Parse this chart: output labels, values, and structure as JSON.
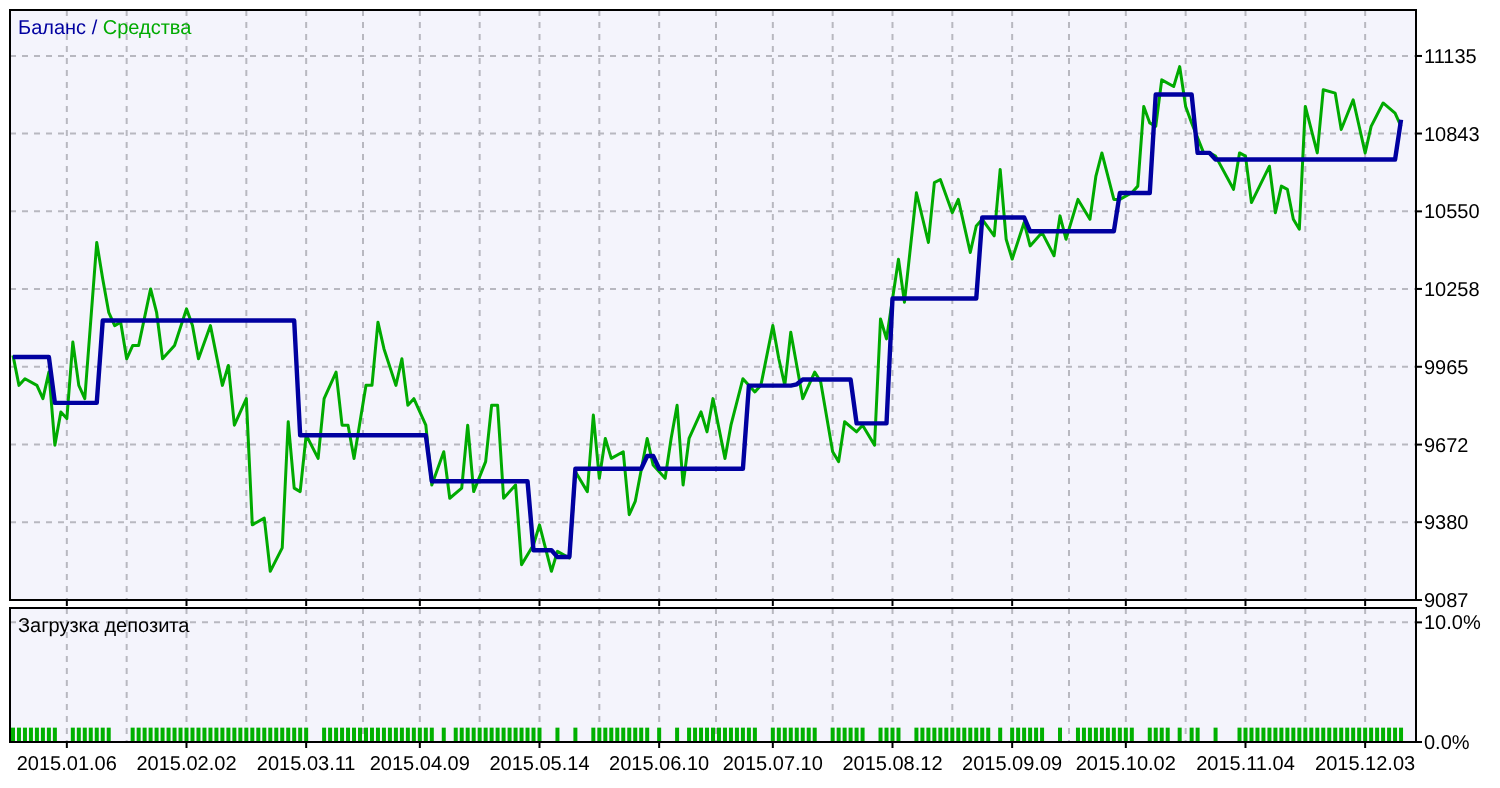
{
  "chart_data": [
    {
      "type": "line",
      "legend": "top left",
      "grid": true,
      "tick_labels": "y",
      "ylim": [
        9087,
        11308
      ],
      "yticks": [
        9087,
        9380,
        9672,
        9965,
        10258,
        10550,
        10843,
        11135
      ],
      "categories": [
        null,
        null,
        null,
        null,
        null,
        null,
        null,
        null,
        null,
        "2015.01.06",
        null,
        null,
        null,
        null,
        null,
        null,
        null,
        null,
        null,
        null,
        null,
        null,
        null,
        null,
        null,
        null,
        null,
        null,
        null,
        "2015.02.02",
        null,
        null,
        null,
        null,
        null,
        null,
        null,
        null,
        null,
        null,
        null,
        null,
        null,
        null,
        null,
        null,
        null,
        null,
        null,
        "2015.03.11",
        null,
        null,
        null,
        null,
        null,
        null,
        null,
        null,
        null,
        null,
        null,
        null,
        null,
        null,
        null,
        null,
        null,
        null,
        "2015.04.09",
        null,
        null,
        null,
        null,
        null,
        null,
        null,
        null,
        null,
        null,
        null,
        null,
        null,
        null,
        null,
        null,
        null,
        null,
        null,
        "2015.05.14",
        null,
        null,
        null,
        null,
        null,
        null,
        null,
        null,
        null,
        null,
        null,
        null,
        null,
        null,
        null,
        null,
        null,
        null,
        null,
        "2015.06.10",
        null,
        null,
        null,
        null,
        null,
        null,
        null,
        null,
        null,
        null,
        null,
        null,
        null,
        null,
        null,
        null,
        null,
        null,
        "2015.07.10",
        null,
        null,
        null,
        null,
        null,
        null,
        null,
        null,
        null,
        null,
        null,
        null,
        null,
        null,
        null,
        null,
        null,
        null,
        null,
        "2015.08.12",
        null,
        null,
        null,
        null,
        null,
        null,
        null,
        null,
        null,
        null,
        null,
        null,
        null,
        null,
        null,
        null,
        null,
        null,
        null,
        "2015.09.09",
        null,
        null,
        null,
        null,
        null,
        null,
        null,
        null,
        null,
        null,
        null,
        null,
        null,
        null,
        null,
        null,
        null,
        null,
        "2015.10.02",
        null,
        null,
        null,
        null,
        null,
        null,
        null,
        null,
        null,
        null,
        null,
        null,
        null,
        null,
        null,
        null,
        null,
        null,
        null,
        "2015.11.04",
        null,
        null,
        null,
        null,
        null,
        null,
        null,
        null,
        null,
        null,
        null,
        null,
        null,
        null,
        null,
        null,
        null,
        null,
        null,
        "2015.12.03",
        null,
        null,
        null,
        null,
        null,
        null,
        null,
        null
      ],
      "series": [
        {
          "name": "Баланс /",
          "color": "#0000a0",
          "values": [
            10002,
            10002,
            10002,
            10002,
            10002,
            10002,
            10002,
            9829,
            9829,
            9829,
            9829,
            9829,
            9829,
            9829,
            9829,
            10139,
            10139,
            10139,
            10139,
            10139,
            10139,
            10139,
            10139,
            10139,
            10139,
            10139,
            10139,
            10139,
            10139,
            10139,
            10139,
            10139,
            10139,
            10139,
            10139,
            10139,
            10139,
            10139,
            10139,
            10139,
            10139,
            10139,
            10139,
            10139,
            10139,
            10139,
            10139,
            10139,
            9707,
            9707,
            9707,
            9707,
            9707,
            9707,
            9707,
            9707,
            9707,
            9707,
            9707,
            9707,
            9707,
            9707,
            9707,
            9707,
            9707,
            9707,
            9707,
            9707,
            9707,
            9707,
            9534,
            9534,
            9534,
            9534,
            9534,
            9534,
            9534,
            9534,
            9534,
            9534,
            9534,
            9534,
            9534,
            9534,
            9534,
            9534,
            9534,
            9274,
            9274,
            9274,
            9274,
            9249,
            9249,
            9249,
            9581,
            9581,
            9581,
            9581,
            9581,
            9581,
            9581,
            9581,
            9581,
            9581,
            9581,
            9581,
            9629,
            9629,
            9581,
            9581,
            9581,
            9581,
            9581,
            9581,
            9581,
            9581,
            9581,
            9581,
            9581,
            9581,
            9581,
            9581,
            9581,
            9894,
            9894,
            9894,
            9894,
            9894,
            9894,
            9894,
            9894,
            9899,
            9917,
            9917,
            9917,
            9917,
            9917,
            9917,
            9917,
            9917,
            9917,
            9752,
            9752,
            9752,
            9752,
            9752,
            9752,
            10222,
            10222,
            10222,
            10222,
            10222,
            10222,
            10222,
            10222,
            10222,
            10222,
            10222,
            10222,
            10222,
            10222,
            10222,
            10527,
            10527,
            10527,
            10527,
            10527,
            10527,
            10527,
            10527,
            10475,
            10475,
            10475,
            10475,
            10475,
            10475,
            10475,
            10475,
            10475,
            10475,
            10475,
            10475,
            10475,
            10475,
            10475,
            10619,
            10619,
            10619,
            10619,
            10619,
            10619,
            10990,
            10990,
            10990,
            10990,
            10990,
            10990,
            10990,
            10770,
            10770,
            10770,
            10745,
            10745,
            10745,
            10745,
            10745,
            10745,
            10745,
            10745,
            10745,
            10745,
            10745,
            10745,
            10745,
            10745,
            10745,
            10745,
            10745,
            10745,
            10745,
            10745,
            10745,
            10745,
            10745,
            10745,
            10745,
            10745,
            10745,
            10745,
            10745,
            10745,
            10745,
            10895,
            null,
            null
          ]
        },
        {
          "name": "Средства",
          "color": "#00aa00",
          "values": [
            10008,
            9895,
            9920,
            null,
            9895,
            9845,
            9945,
            9670,
            9795,
            9770,
            10058,
            9895,
            9845,
            null,
            10433,
            10295,
            10170,
            10120,
            10133,
            9995,
            10045,
            10045,
            null,
            10258,
            10170,
            9995,
            null,
            10045,
            null,
            10183,
            10120,
            9995,
            null,
            10120,
            null,
            9895,
            9970,
            9745,
            null,
            9845,
            9370,
            null,
            9395,
            9195,
            null,
            9283,
            9758,
            9508,
            9495,
            9708,
            null,
            9620,
            9845,
            null,
            9945,
            9745,
            9745,
            9620,
            null,
            9895,
            9895,
            10133,
            10033,
            null,
            9895,
            9995,
            9820,
            9845,
            null,
            9745,
            9520,
            null,
            9645,
            9470,
            null,
            9508,
            9745,
            9495,
            null,
            9608,
            9820,
            9820,
            9470,
            null,
            9520,
            9220,
            null,
            9295,
            9370,
            null,
            9195,
            9270,
            null,
            9245,
            9570,
            null,
            9495,
            9783,
            9545,
            9695,
            9620,
            null,
            9645,
            9408,
            9458,
            null,
            9695,
            9595,
            null,
            9545,
            9695,
            9820,
            9520,
            9695,
            null,
            9795,
            9720,
            9845,
            null,
            9620,
            9745,
            null,
            9920,
            null,
            9870,
            9895,
            null,
            10120,
            9995,
            9895,
            10095,
            9970,
            9845,
            null,
            9945,
            9908,
            null,
            9645,
            9608,
            9758,
            null,
            9720,
            9745,
            null,
            9670,
            10145,
            10070,
            null,
            10370,
            10208,
            null,
            10620,
            null,
            10433,
            10658,
            10670,
            null,
            10545,
            10595,
            null,
            10395,
            10495,
            10520,
            null,
            10458,
            10708,
            10445,
            10370,
            null,
            10508,
            10420,
            null,
            10470,
            null,
            10383,
            10533,
            10445,
            null,
            10595,
            null,
            10520,
            10683,
            10770,
            null,
            10595,
            10595,
            null,
            10620,
            10645,
            10945,
            10883,
            10870,
            11045,
            null,
            11020,
            11095,
            10945,
            10883,
            null,
            10770,
            10770,
            10758,
            null,
            null,
            10633,
            10770,
            10758,
            10583,
            null,
            null,
            10720,
            10545,
            10645,
            10633,
            10520,
            10483,
            10945,
            null,
            10770,
            11008,
            null,
            10995,
            10858,
            null,
            10970,
            null,
            10770,
            10870,
            null,
            10958,
            null,
            10920,
            10870,
            null,
            null
          ]
        }
      ]
    },
    {
      "type": "bar",
      "title": "Загрузка депозита",
      "grid": true,
      "ylim": [
        0,
        11.2
      ],
      "yticks": [
        {
          "value": 0,
          "label": "0.0%"
        },
        {
          "value": 10,
          "label": "10.0%"
        }
      ],
      "categories": [
        null,
        null,
        null,
        null,
        null,
        null,
        null,
        null,
        null,
        "2015.01.06",
        null,
        null,
        null,
        null,
        null,
        null,
        null,
        null,
        null,
        null,
        null,
        null,
        null,
        null,
        null,
        null,
        null,
        null,
        null,
        "2015.02.02",
        null,
        null,
        null,
        null,
        null,
        null,
        null,
        null,
        null,
        null,
        null,
        null,
        null,
        null,
        null,
        null,
        null,
        null,
        null,
        "2015.03.11",
        null,
        null,
        null,
        null,
        null,
        null,
        null,
        null,
        null,
        null,
        null,
        null,
        null,
        null,
        null,
        null,
        null,
        null,
        "2015.04.09",
        null,
        null,
        null,
        null,
        null,
        null,
        null,
        null,
        null,
        null,
        null,
        null,
        null,
        null,
        null,
        null,
        null,
        null,
        null,
        "2015.05.14",
        null,
        null,
        null,
        null,
        null,
        null,
        null,
        null,
        null,
        null,
        null,
        null,
        null,
        null,
        null,
        null,
        null,
        null,
        null,
        "2015.06.10",
        null,
        null,
        null,
        null,
        null,
        null,
        null,
        null,
        null,
        null,
        null,
        null,
        null,
        null,
        null,
        null,
        null,
        null,
        "2015.07.10",
        null,
        null,
        null,
        null,
        null,
        null,
        null,
        null,
        null,
        null,
        null,
        null,
        null,
        null,
        null,
        null,
        null,
        null,
        null,
        "2015.08.12",
        null,
        null,
        null,
        null,
        null,
        null,
        null,
        null,
        null,
        null,
        null,
        null,
        null,
        null,
        null,
        null,
        null,
        null,
        null,
        "2015.09.09",
        null,
        null,
        null,
        null,
        null,
        null,
        null,
        null,
        null,
        null,
        null,
        null,
        null,
        null,
        null,
        null,
        null,
        null,
        "2015.10.02",
        null,
        null,
        null,
        null,
        null,
        null,
        null,
        null,
        null,
        null,
        null,
        null,
        null,
        null,
        null,
        null,
        null,
        null,
        null,
        "2015.11.04",
        null,
        null,
        null,
        null,
        null,
        null,
        null,
        null,
        null,
        null,
        null,
        null,
        null,
        null,
        null,
        null,
        null,
        null,
        null,
        "2015.12.03",
        null,
        null,
        null,
        null,
        null,
        null,
        null,
        null
      ],
      "series": [
        {
          "color": "#00b000",
          "values": [
            1.2,
            1.2,
            1.2,
            1.2,
            1.2,
            1.2,
            1.2,
            1.2,
            null,
            null,
            1.2,
            1.2,
            1.2,
            1.2,
            1.2,
            1.2,
            1.2,
            null,
            null,
            null,
            1.2,
            1.2,
            1.2,
            1.2,
            1.2,
            1.2,
            1.2,
            1.2,
            1.2,
            1.2,
            1.2,
            1.2,
            1.2,
            1.2,
            1.2,
            1.2,
            1.2,
            1.2,
            1.2,
            1.2,
            1.2,
            1.2,
            1.2,
            1.2,
            1.2,
            1.2,
            1.2,
            1.2,
            1.2,
            1.2,
            null,
            null,
            1.2,
            1.2,
            1.2,
            1.2,
            1.2,
            1.2,
            1.2,
            1.2,
            1.2,
            1.2,
            1.2,
            1.2,
            1.2,
            1.2,
            1.2,
            1.2,
            1.2,
            1.2,
            1.2,
            null,
            1.2,
            null,
            1.2,
            1.2,
            1.2,
            1.2,
            1.2,
            1.2,
            1.2,
            1.2,
            1.2,
            1.2,
            1.2,
            1.2,
            1.2,
            1.2,
            1.2,
            null,
            null,
            1.2,
            null,
            null,
            1.2,
            null,
            null,
            1.2,
            1.2,
            1.2,
            1.2,
            1.2,
            1.2,
            1.2,
            1.2,
            1.2,
            1.2,
            null,
            1.2,
            null,
            null,
            1.2,
            null,
            1.2,
            1.2,
            1.2,
            1.2,
            1.2,
            1.2,
            1.2,
            1.2,
            1.2,
            1.2,
            1.2,
            1.2,
            null,
            null,
            1.2,
            1.2,
            1.2,
            1.2,
            1.2,
            1.2,
            1.2,
            1.2,
            null,
            null,
            1.2,
            1.2,
            1.2,
            1.2,
            1.2,
            1.2,
            null,
            null,
            1.2,
            1.2,
            1.2,
            1.2,
            null,
            null,
            1.2,
            1.2,
            1.2,
            1.2,
            1.2,
            1.2,
            1.2,
            1.2,
            1.2,
            1.2,
            1.2,
            1.2,
            1.2,
            null,
            1.2,
            null,
            1.2,
            1.2,
            1.2,
            1.2,
            1.2,
            1.2,
            null,
            null,
            1.2,
            null,
            null,
            1.2,
            1.2,
            1.2,
            1.2,
            1.2,
            1.2,
            1.2,
            1.2,
            1.2,
            1.2,
            null,
            null,
            1.2,
            1.2,
            1.2,
            1.2,
            null,
            1.2,
            null,
            1.2,
            1.2,
            null,
            null,
            1.2,
            null,
            null,
            null,
            1.2,
            1.2,
            1.2,
            1.2,
            1.2,
            1.2,
            1.2,
            1.2,
            1.2,
            1.2,
            1.2,
            1.2,
            1.2,
            1.2,
            1.2,
            1.2,
            1.2,
            1.2,
            1.2,
            1.2,
            1.2,
            1.2,
            1.2,
            1.2,
            1.2,
            1.2,
            1.2,
            1.2,
            null,
            null
          ]
        }
      ]
    }
  ]
}
